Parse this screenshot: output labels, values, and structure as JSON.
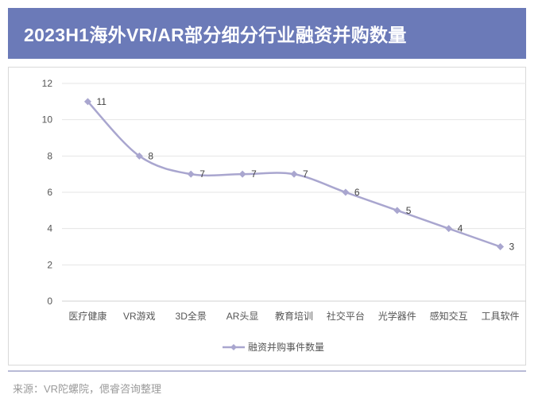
{
  "header": {
    "title": "2023H1海外VR/AR部分细分行业融资并购数量"
  },
  "footer": {
    "source": "来源：VR陀螺院，偲睿咨询整理"
  },
  "colors": {
    "header_bg": "#6b7ab8",
    "series": "#a9a6cf",
    "grid": "#e5e5e5"
  },
  "chart_data": {
    "type": "line",
    "title": "2023H1海外VR/AR部分细分行业融资并购数量",
    "categories": [
      "医疗健康",
      "VR游戏",
      "3D全景",
      "AR头显",
      "教育培训",
      "社交平台",
      "光学器件",
      "感知交互",
      "工具软件"
    ],
    "series": [
      {
        "name": "融资并购事件数量",
        "values": [
          11,
          8,
          7,
          7,
          7,
          6,
          5,
          4,
          3
        ]
      }
    ],
    "yticks": [
      0,
      2,
      4,
      6,
      8,
      10,
      12
    ],
    "ylim": [
      0,
      12
    ],
    "xlabel": "",
    "ylabel": "",
    "grid": true,
    "smooth": true,
    "legend_position": "bottom"
  }
}
